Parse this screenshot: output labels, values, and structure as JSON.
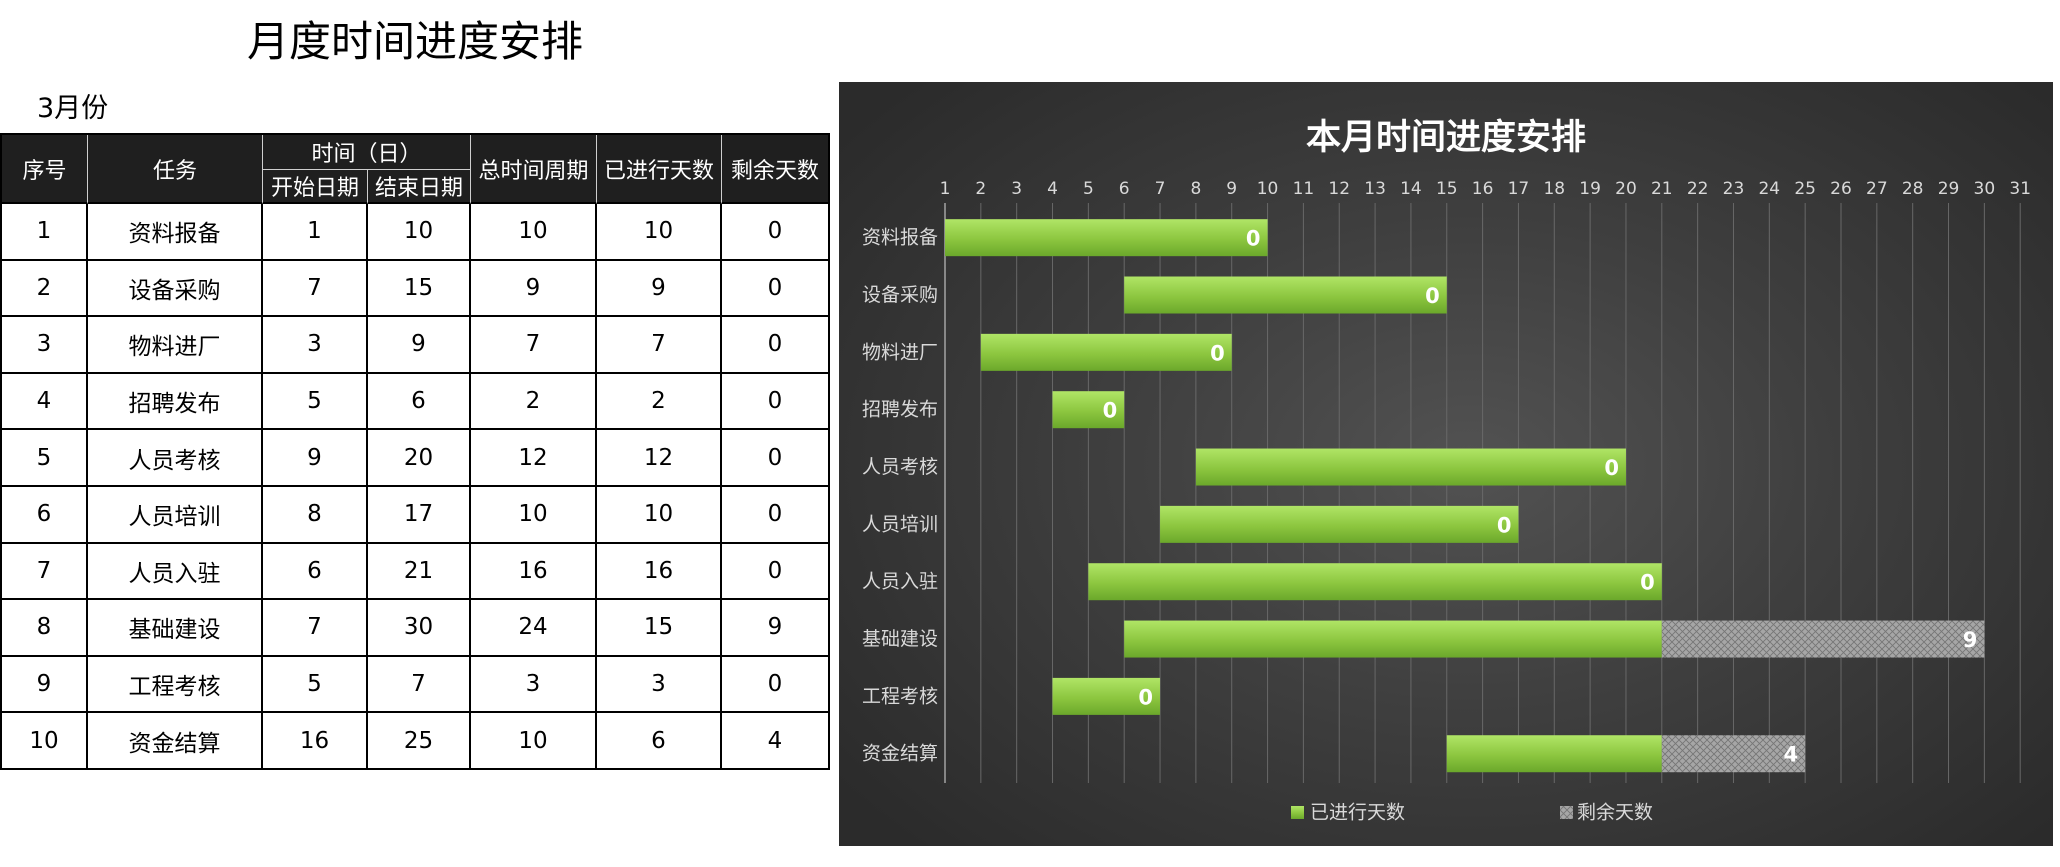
{
  "page": {
    "title": "月度时间进度安排",
    "month_label": "3月份"
  },
  "table": {
    "headers": {
      "index": "序号",
      "task": "任务",
      "time_group": "时间（日）",
      "start_date": "开始日期",
      "end_date": "结束日期",
      "total_period": "总时间周期",
      "days_elapsed": "已进行天数",
      "days_remaining": "剩余天数"
    },
    "rows": [
      [
        1,
        "资料报备",
        1,
        10,
        10,
        10,
        0
      ],
      [
        2,
        "设备采购",
        7,
        15,
        9,
        9,
        0
      ],
      [
        3,
        "物料进厂",
        3,
        9,
        7,
        7,
        0
      ],
      [
        4,
        "招聘发布",
        5,
        6,
        2,
        2,
        0
      ],
      [
        5,
        "人员考核",
        9,
        20,
        12,
        12,
        0
      ],
      [
        6,
        "人员培训",
        8,
        17,
        10,
        10,
        0
      ],
      [
        7,
        "人员入驻",
        6,
        21,
        16,
        16,
        0
      ],
      [
        8,
        "基础建设",
        7,
        30,
        24,
        15,
        9
      ],
      [
        9,
        "工程考核",
        5,
        7,
        3,
        3,
        0
      ],
      [
        10,
        "资金结算",
        16,
        25,
        10,
        6,
        4
      ]
    ]
  },
  "chart_data": {
    "type": "bar",
    "orientation": "horizontal",
    "stacked": true,
    "title": "本月时间进度安排",
    "categories": [
      "资料报备",
      "设备采购",
      "物料进厂",
      "招聘发布",
      "人员考核",
      "人员培训",
      "人员入驻",
      "基础建设",
      "工程考核",
      "资金结算"
    ],
    "offset": [
      0,
      6,
      2,
      4,
      8,
      7,
      5,
      6,
      4,
      15
    ],
    "series": [
      {
        "name": "已进行天数",
        "values": [
          10,
          9,
          7,
          2,
          12,
          10,
          16,
          15,
          3,
          6
        ],
        "color": "#8cc63f"
      },
      {
        "name": "剩余天数",
        "values": [
          0,
          0,
          0,
          0,
          0,
          0,
          0,
          9,
          0,
          4
        ],
        "color": "#a6a6a6",
        "data_labels": true
      }
    ],
    "xticks": [
      1,
      2,
      3,
      4,
      5,
      6,
      7,
      8,
      9,
      10,
      11,
      12,
      13,
      14,
      15,
      16,
      17,
      18,
      19,
      20,
      21,
      22,
      23,
      24,
      25,
      26,
      27,
      28,
      29,
      30,
      31
    ],
    "xlim": [
      1,
      31
    ],
    "xaxis": "top",
    "grid": true,
    "legend": "bottom"
  }
}
